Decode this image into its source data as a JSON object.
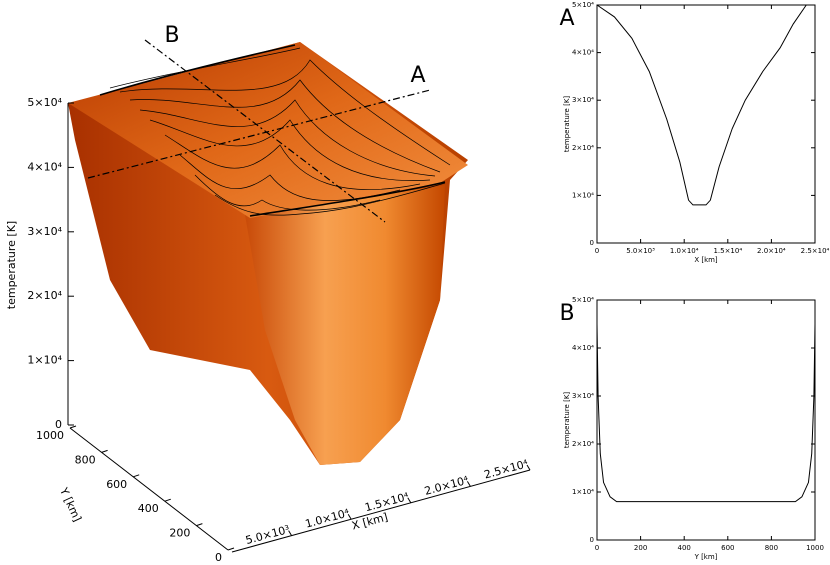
{
  "chart_data": [
    {
      "type": "surface",
      "zlabel": "temperature [K]",
      "ylabel": "Y [km]",
      "xlabel": "X [km]",
      "zlim": [
        0,
        50000
      ],
      "zticks": [
        0,
        {
          "value": 10000,
          "label": "1×10⁴"
        },
        {
          "value": 20000,
          "label": "2×10⁴"
        },
        {
          "value": 30000,
          "label": "3×10⁴"
        },
        {
          "value": 40000,
          "label": "4×10⁴"
        },
        {
          "value": 50000,
          "label": "5×10⁴"
        }
      ],
      "ylim": [
        0,
        1000
      ],
      "yticks": [
        0,
        200,
        400,
        600,
        800,
        1000
      ],
      "xlim": [
        0,
        25000
      ],
      "xticks": [
        {
          "value": 5000,
          "label": "5.0×10³"
        },
        {
          "value": 10000,
          "label": "1.0×10⁴"
        },
        {
          "value": 15000,
          "label": "1.5×10⁴"
        },
        {
          "value": 20000,
          "label": "2.0×10⁴"
        },
        {
          "value": 25000,
          "label": "2.5×10⁴"
        }
      ],
      "annotations": [
        "A",
        "B"
      ]
    },
    {
      "type": "line",
      "panel_label": "A",
      "xlabel": "X [km]",
      "ylabel": "temperature [K]",
      "color": "#000000",
      "x": [
        0,
        2000,
        4000,
        6000,
        8000,
        9500,
        10500,
        11000,
        12500,
        13000,
        14000,
        15500,
        17000,
        19000,
        21000,
        22500,
        24000
      ],
      "values": [
        50000,
        47500,
        43000,
        36000,
        26000,
        17000,
        9000,
        8000,
        8000,
        9000,
        16000,
        24000,
        30000,
        36000,
        41000,
        46000,
        50000
      ],
      "xlim": [
        0,
        25000
      ],
      "xticks": [
        0,
        {
          "value": 5000,
          "label": "5.0×10³"
        },
        {
          "value": 10000,
          "label": "1.0×10⁴"
        },
        {
          "value": 15000,
          "label": "1.5×10⁴"
        },
        {
          "value": 20000,
          "label": "2.0×10⁴"
        },
        {
          "value": 25000,
          "label": "2.5×10⁴"
        }
      ],
      "ylim": [
        0,
        50000
      ],
      "yticks": [
        0,
        {
          "value": 10000,
          "label": "1×10⁴"
        },
        {
          "value": 20000,
          "label": "2×10⁴"
        },
        {
          "value": 30000,
          "label": "3×10⁴"
        },
        {
          "value": 40000,
          "label": "4×10⁴"
        },
        {
          "value": 50000,
          "label": "5×10⁴"
        }
      ]
    },
    {
      "type": "line",
      "panel_label": "B",
      "xlabel": "Y [km]",
      "ylabel": "temperature [K]",
      "color": "#000000",
      "x": [
        0,
        5,
        15,
        30,
        60,
        90,
        910,
        940,
        970,
        985,
        995,
        1000
      ],
      "values": [
        45000,
        30000,
        18000,
        12000,
        9000,
        8000,
        8000,
        9000,
        12000,
        18000,
        30000,
        45000
      ],
      "xlim": [
        0,
        1000
      ],
      "xticks": [
        0,
        200,
        400,
        600,
        800,
        1000
      ],
      "ylim": [
        0,
        50000
      ],
      "yticks": [
        0,
        {
          "value": 10000,
          "label": "1×10⁴"
        },
        {
          "value": 20000,
          "label": "2×10⁴"
        },
        {
          "value": 30000,
          "label": "3×10⁴"
        },
        {
          "value": 40000,
          "label": "4×10⁴"
        },
        {
          "value": 50000,
          "label": "5×10⁴"
        }
      ]
    }
  ]
}
